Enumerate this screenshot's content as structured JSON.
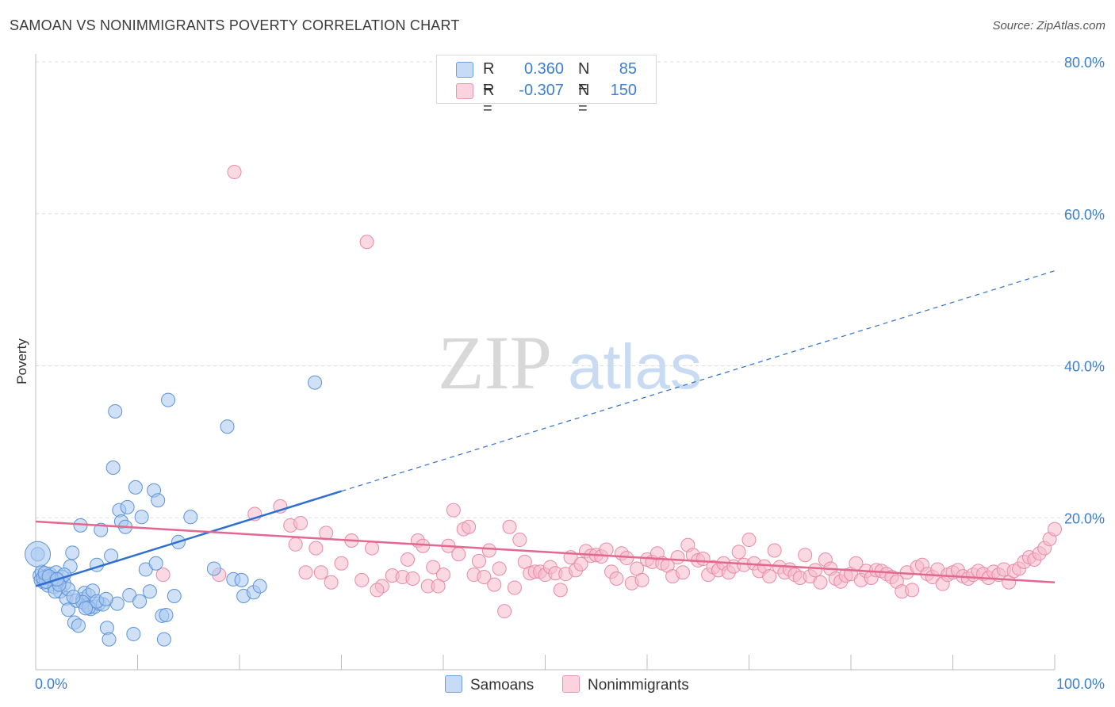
{
  "header": {
    "title": "SAMOAN VS NONIMMIGRANTS POVERTY CORRELATION CHART",
    "source": "Source: ZipAtlas.com"
  },
  "watermark": {
    "zip": "ZIP",
    "atlas": "atlas"
  },
  "legend": {
    "rows": [
      {
        "r_label": "R =",
        "r_value": "0.360",
        "n_label": "N =",
        "n_value": "85",
        "color": "#a9c8f0"
      },
      {
        "r_label": "R =",
        "r_value": "-0.307",
        "n_label": "N =",
        "n_value": "150",
        "color": "#f6b9cc"
      }
    ]
  },
  "bottom_legend": {
    "samoans": "Samoans",
    "nonimmigrants": "Nonimmigrants"
  },
  "chart_data": {
    "type": "scatter",
    "ylabel": "Poverty",
    "xlim": [
      0,
      100
    ],
    "ylim": [
      0,
      80
    ],
    "x_tick_labels": [
      "0.0%",
      "100.0%"
    ],
    "y_ticks": [
      20,
      40,
      60,
      80
    ],
    "y_tick_labels": [
      "20.0%",
      "40.0%",
      "60.0%",
      "80.0%"
    ],
    "grid": true,
    "series": [
      {
        "name": "Samoans",
        "color": "#a9c8f0",
        "stroke": "#5b93d8",
        "trend": {
          "x": [
            0,
            30
          ],
          "y": [
            11.0,
            23.5
          ],
          "extend_to": 100,
          "extend_y": 52.5,
          "color": "#2f6fd0"
        },
        "points": [
          [
            0.2,
            15.2
          ],
          [
            0.4,
            12.4
          ],
          [
            0.5,
            11.8
          ],
          [
            0.6,
            12.9
          ],
          [
            0.8,
            11.5
          ],
          [
            1.0,
            12.3
          ],
          [
            1.2,
            11.1
          ],
          [
            1.4,
            12.6
          ],
          [
            1.6,
            12.0
          ],
          [
            1.8,
            10.9
          ],
          [
            2.0,
            12.8
          ],
          [
            2.2,
            11.6
          ],
          [
            2.4,
            10.3
          ],
          [
            2.6,
            12.2
          ],
          [
            2.8,
            11.3
          ],
          [
            3.0,
            9.4
          ],
          [
            3.2,
            7.9
          ],
          [
            3.4,
            13.6
          ],
          [
            3.6,
            15.4
          ],
          [
            3.8,
            6.2
          ],
          [
            4.0,
            9.1
          ],
          [
            4.2,
            5.8
          ],
          [
            4.4,
            19.0
          ],
          [
            4.6,
            9.3
          ],
          [
            4.8,
            10.1
          ],
          [
            5.0,
            8.5
          ],
          [
            5.2,
            9.8
          ],
          [
            5.4,
            8.0
          ],
          [
            5.6,
            10.4
          ],
          [
            5.8,
            8.3
          ],
          [
            6.0,
            13.8
          ],
          [
            6.2,
            8.7
          ],
          [
            6.4,
            18.4
          ],
          [
            6.6,
            8.6
          ],
          [
            7.0,
            5.5
          ],
          [
            7.2,
            4.0
          ],
          [
            7.4,
            15.0
          ],
          [
            7.6,
            26.6
          ],
          [
            7.8,
            34.0
          ],
          [
            8.0,
            8.7
          ],
          [
            8.2,
            21.0
          ],
          [
            8.4,
            19.5
          ],
          [
            8.8,
            18.8
          ],
          [
            9.0,
            21.4
          ],
          [
            9.2,
            9.8
          ],
          [
            9.6,
            4.7
          ],
          [
            9.8,
            24.0
          ],
          [
            10.2,
            9.0
          ],
          [
            10.4,
            20.1
          ],
          [
            10.8,
            13.2
          ],
          [
            11.2,
            10.3
          ],
          [
            11.6,
            23.6
          ],
          [
            11.8,
            14.0
          ],
          [
            12.0,
            22.3
          ],
          [
            12.4,
            7.1
          ],
          [
            12.6,
            4.0
          ],
          [
            12.8,
            7.2
          ],
          [
            13.0,
            35.5
          ],
          [
            13.6,
            9.7
          ],
          [
            14.0,
            16.8
          ],
          [
            15.2,
            20.1
          ],
          [
            17.5,
            13.3
          ],
          [
            18.8,
            32.0
          ],
          [
            19.4,
            11.9
          ],
          [
            20.2,
            11.8
          ],
          [
            20.4,
            9.7
          ],
          [
            21.4,
            10.2
          ],
          [
            22.0,
            11.0
          ],
          [
            27.4,
            37.8
          ],
          [
            1.6,
            11.9
          ],
          [
            2.8,
            12.5
          ],
          [
            1.0,
            11.6
          ],
          [
            0.7,
            12.1
          ],
          [
            3.2,
            10.6
          ],
          [
            4.6,
            8.9
          ],
          [
            5.2,
            8.2
          ],
          [
            6.0,
            9.0
          ],
          [
            1.9,
            10.3
          ],
          [
            0.9,
            12.7
          ],
          [
            2.3,
            11.2
          ],
          [
            3.7,
            9.6
          ],
          [
            4.9,
            8.1
          ],
          [
            6.9,
            9.3
          ],
          [
            1.3,
            12.3
          ],
          [
            2.1,
            11.9
          ]
        ]
      },
      {
        "name": "Nonimmigrants",
        "color": "#f6b9cc",
        "stroke": "#e88aa8",
        "trend": {
          "x": [
            0,
            100
          ],
          "y": [
            19.5,
            11.5
          ],
          "color": "#e2688f"
        },
        "points": [
          [
            12.5,
            12.5
          ],
          [
            19.5,
            65.5
          ],
          [
            32.5,
            56.3
          ],
          [
            21.5,
            20.5
          ],
          [
            24.0,
            21.5
          ],
          [
            25.0,
            19.0
          ],
          [
            26.0,
            19.3
          ],
          [
            25.5,
            16.5
          ],
          [
            26.5,
            12.8
          ],
          [
            27.5,
            16.0
          ],
          [
            28.5,
            18.0
          ],
          [
            29.0,
            11.5
          ],
          [
            30.0,
            14.0
          ],
          [
            31.0,
            17.0
          ],
          [
            32.0,
            11.8
          ],
          [
            33.0,
            16.0
          ],
          [
            34.0,
            11.0
          ],
          [
            35.0,
            12.4
          ],
          [
            36.0,
            12.2
          ],
          [
            36.5,
            14.5
          ],
          [
            37.5,
            17.0
          ],
          [
            38.0,
            16.3
          ],
          [
            38.5,
            11.0
          ],
          [
            39.0,
            13.5
          ],
          [
            40.0,
            12.5
          ],
          [
            40.5,
            16.3
          ],
          [
            41.0,
            21.0
          ],
          [
            41.5,
            15.2
          ],
          [
            42.0,
            18.5
          ],
          [
            42.5,
            18.8
          ],
          [
            43.0,
            12.5
          ],
          [
            43.5,
            14.3
          ],
          [
            44.0,
            12.2
          ],
          [
            44.5,
            15.7
          ],
          [
            45.0,
            11.2
          ],
          [
            45.5,
            13.3
          ],
          [
            46.0,
            7.7
          ],
          [
            46.5,
            18.8
          ],
          [
            47.0,
            10.8
          ],
          [
            47.5,
            17.1
          ],
          [
            48.0,
            14.2
          ],
          [
            48.5,
            12.7
          ],
          [
            49.0,
            12.9
          ],
          [
            49.5,
            12.9
          ],
          [
            50.0,
            12.5
          ],
          [
            50.5,
            13.5
          ],
          [
            51.0,
            12.7
          ],
          [
            51.5,
            10.5
          ],
          [
            52.0,
            12.6
          ],
          [
            52.5,
            14.8
          ],
          [
            53.0,
            13.1
          ],
          [
            53.5,
            13.9
          ],
          [
            54.0,
            15.6
          ],
          [
            54.5,
            15.0
          ],
          [
            55.0,
            15.1
          ],
          [
            55.5,
            14.9
          ],
          [
            56.0,
            15.8
          ],
          [
            56.5,
            12.9
          ],
          [
            57.0,
            12.0
          ],
          [
            57.5,
            15.3
          ],
          [
            58.0,
            14.7
          ],
          [
            58.5,
            11.4
          ],
          [
            59.0,
            13.3
          ],
          [
            59.5,
            11.8
          ],
          [
            60.0,
            14.5
          ],
          [
            60.5,
            14.2
          ],
          [
            61.0,
            15.3
          ],
          [
            61.5,
            14.0
          ],
          [
            62.0,
            13.7
          ],
          [
            62.5,
            12.3
          ],
          [
            63.0,
            14.8
          ],
          [
            63.5,
            12.8
          ],
          [
            64.0,
            16.4
          ],
          [
            64.5,
            15.1
          ],
          [
            65.0,
            14.4
          ],
          [
            65.5,
            14.6
          ],
          [
            66.0,
            12.5
          ],
          [
            66.5,
            13.5
          ],
          [
            67.0,
            13.1
          ],
          [
            67.5,
            14.0
          ],
          [
            68.0,
            12.8
          ],
          [
            68.5,
            13.6
          ],
          [
            69.0,
            15.5
          ],
          [
            69.5,
            13.8
          ],
          [
            70.0,
            17.1
          ],
          [
            70.5,
            14.0
          ],
          [
            71.0,
            13.0
          ],
          [
            71.5,
            13.6
          ],
          [
            72.0,
            12.3
          ],
          [
            72.5,
            15.7
          ],
          [
            73.0,
            13.5
          ],
          [
            73.5,
            12.8
          ],
          [
            74.0,
            13.2
          ],
          [
            74.5,
            12.5
          ],
          [
            75.0,
            12.1
          ],
          [
            75.5,
            15.1
          ],
          [
            76.0,
            12.3
          ],
          [
            76.5,
            13.1
          ],
          [
            77.0,
            11.5
          ],
          [
            77.5,
            14.5
          ],
          [
            78.0,
            13.3
          ],
          [
            78.5,
            12.0
          ],
          [
            79.0,
            11.6
          ],
          [
            79.5,
            12.4
          ],
          [
            80.0,
            12.6
          ],
          [
            80.5,
            14.0
          ],
          [
            81.0,
            11.8
          ],
          [
            81.5,
            13.0
          ],
          [
            82.0,
            12.1
          ],
          [
            82.5,
            13.1
          ],
          [
            83.0,
            13.0
          ],
          [
            83.5,
            12.6
          ],
          [
            84.0,
            12.2
          ],
          [
            84.5,
            11.6
          ],
          [
            85.0,
            10.3
          ],
          [
            85.5,
            12.8
          ],
          [
            86.0,
            10.5
          ],
          [
            86.5,
            13.5
          ],
          [
            87.0,
            13.8
          ],
          [
            87.5,
            12.6
          ],
          [
            88.0,
            12.2
          ],
          [
            88.5,
            13.2
          ],
          [
            89.0,
            11.3
          ],
          [
            89.5,
            12.5
          ],
          [
            90.0,
            12.8
          ],
          [
            90.5,
            13.1
          ],
          [
            91.0,
            12.3
          ],
          [
            91.5,
            12.0
          ],
          [
            92.0,
            12.5
          ],
          [
            92.5,
            13.0
          ],
          [
            93.0,
            12.6
          ],
          [
            93.5,
            12.1
          ],
          [
            94.0,
            12.9
          ],
          [
            94.5,
            12.5
          ],
          [
            95.0,
            13.2
          ],
          [
            95.5,
            11.5
          ],
          [
            96.0,
            13.0
          ],
          [
            96.5,
            13.3
          ],
          [
            97.0,
            14.2
          ],
          [
            97.5,
            14.8
          ],
          [
            98.0,
            14.5
          ],
          [
            98.5,
            15.3
          ],
          [
            99.0,
            16.0
          ],
          [
            99.5,
            17.2
          ],
          [
            100.0,
            18.5
          ],
          [
            18.0,
            12.5
          ],
          [
            28.0,
            12.8
          ],
          [
            33.5,
            10.5
          ],
          [
            37.0,
            12.0
          ],
          [
            39.5,
            11.0
          ]
        ]
      }
    ]
  }
}
